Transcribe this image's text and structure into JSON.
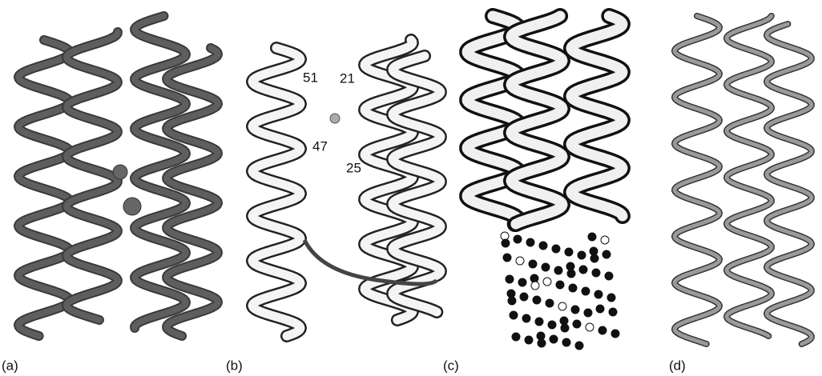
{
  "panels": [
    {
      "label": "(a)"
    },
    {
      "label": "(b)",
      "residues": [
        "51",
        "21",
        "47",
        "25"
      ]
    },
    {
      "label": "(c)"
    },
    {
      "label": "(d)"
    }
  ]
}
